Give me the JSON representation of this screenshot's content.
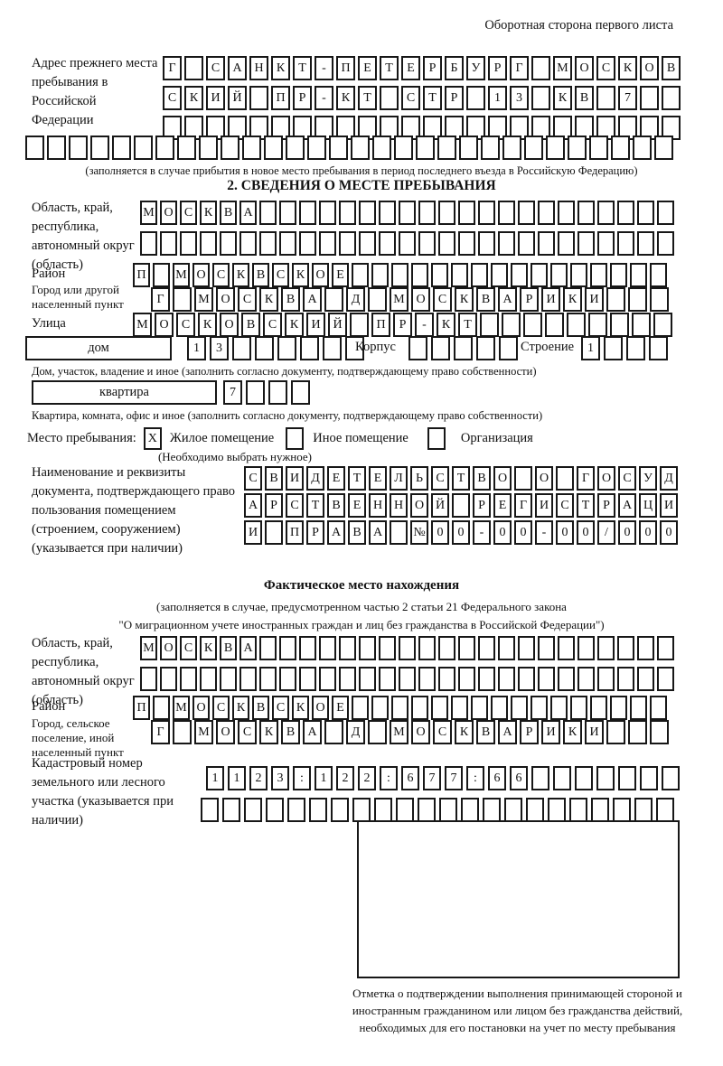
{
  "page": {
    "back_note": "Оборотная сторона первого листа"
  },
  "prev_address": {
    "label": "Адрес прежнего места пребывания в Российской Федерации",
    "rows": [
      [
        "Г",
        "",
        "С",
        "А",
        "Н",
        "К",
        "Т",
        "-",
        "П",
        "Е",
        "Т",
        "Е",
        "Р",
        "Б",
        "У",
        "Р",
        "Г",
        "",
        "М",
        "О",
        "С",
        "К",
        "О",
        "В"
      ],
      [
        "С",
        "К",
        "И",
        "Й",
        "",
        "П",
        "Р",
        "-",
        "К",
        "Т",
        "",
        "С",
        "Т",
        "Р",
        "",
        "1",
        "3",
        "",
        "К",
        "В",
        "",
        "7",
        "",
        ""
      ],
      [
        "",
        "",
        "",
        "",
        "",
        "",
        "",
        "",
        "",
        "",
        "",
        "",
        "",
        "",
        "",
        "",
        "",
        "",
        "",
        "",
        "",
        "",
        "",
        ""
      ],
      [
        "",
        "",
        "",
        "",
        "",
        "",
        "",
        "",
        "",
        "",
        "",
        "",
        "",
        "",
        "",
        "",
        "",
        "",
        "",
        "",
        "",
        "",
        "",
        "",
        "",
        "",
        "",
        "",
        "",
        ""
      ]
    ],
    "caption": "(заполняется в случае прибытия в новое место пребывания в период последнего въезда в Российскую Федерацию)"
  },
  "section2": {
    "title": "2. СВЕДЕНИЯ О МЕСТЕ ПРЕБЫВАНИЯ",
    "oblast": {
      "label": "Область, край, республика, автономный округ (область)",
      "rows": [
        [
          "М",
          "О",
          "С",
          "К",
          "В",
          "А",
          "",
          "",
          "",
          "",
          "",
          "",
          "",
          "",
          "",
          "",
          "",
          "",
          "",
          "",
          "",
          "",
          "",
          "",
          "",
          "",
          ""
        ],
        [
          "",
          "",
          "",
          "",
          "",
          "",
          "",
          "",
          "",
          "",
          "",
          "",
          "",
          "",
          "",
          "",
          "",
          "",
          "",
          "",
          "",
          "",
          "",
          "",
          "",
          "",
          ""
        ]
      ]
    },
    "raion": {
      "label": "Район",
      "row": [
        "П",
        "",
        "М",
        "О",
        "С",
        "К",
        "В",
        "С",
        "К",
        "О",
        "Е",
        "",
        "",
        "",
        "",
        "",
        "",
        "",
        "",
        "",
        "",
        "",
        "",
        "",
        "",
        "",
        ""
      ]
    },
    "gorod": {
      "label": "Город или другой населенный пункт",
      "row": [
        "Г",
        "",
        "М",
        "О",
        "С",
        "К",
        "В",
        "А",
        "",
        "Д",
        "",
        "М",
        "О",
        "С",
        "К",
        "В",
        "А",
        "Р",
        "И",
        "К",
        "И",
        "",
        "",
        ""
      ]
    },
    "ulitsa": {
      "label": "Улица",
      "row": [
        "М",
        "О",
        "С",
        "К",
        "О",
        "В",
        "С",
        "К",
        "И",
        "Й",
        "",
        "П",
        "Р",
        "-",
        "К",
        "Т",
        "",
        "",
        "",
        "",
        "",
        "",
        "",
        "",
        ""
      ]
    },
    "dom": {
      "box_label": "дом",
      "cells": [
        "1",
        "3",
        "",
        "",
        "",
        "",
        "",
        ""
      ],
      "korpus_label": "Корпус",
      "korpus_cells": [
        "",
        "",
        "",
        "",
        ""
      ],
      "stroenie_label": "Строение",
      "stroenie_cells": [
        "1",
        "",
        "",
        ""
      ],
      "caption": "Дом, участок, владение и иное (заполнить согласно документу, подтверждающему право собственности)"
    },
    "kvartira": {
      "box_label": "квартира",
      "cells": [
        "7",
        "",
        "",
        ""
      ],
      "caption": "Квартира, комната, офис и иное (заполнить согласно документу, подтверждающему право собственности)"
    },
    "mesto": {
      "label": "Место пребывания:",
      "options": [
        {
          "label": "Жилое помещение",
          "mark": "X"
        },
        {
          "label": "Иное помещение",
          "mark": ""
        },
        {
          "label": "Организация",
          "mark": ""
        }
      ],
      "note": "(Необходимо выбрать нужное)"
    },
    "doc": {
      "label": "Наименование и реквизиты документа, подтверждающего право пользования помещением (строением, сооружением) (указывается при наличии)",
      "rows": [
        [
          "С",
          "В",
          "И",
          "Д",
          "Е",
          "Т",
          "Е",
          "Л",
          "Ь",
          "С",
          "Т",
          "В",
          "О",
          "",
          "О",
          "",
          "Г",
          "О",
          "С",
          "У",
          "Д"
        ],
        [
          "А",
          "Р",
          "С",
          "Т",
          "В",
          "Е",
          "Н",
          "Н",
          "О",
          "Й",
          "",
          "Р",
          "Е",
          "Г",
          "И",
          "С",
          "Т",
          "Р",
          "А",
          "Ц",
          "И"
        ],
        [
          "И",
          "",
          "П",
          "Р",
          "А",
          "В",
          "А",
          "",
          "№",
          "0",
          "0",
          "-",
          "0",
          "0",
          "-",
          "0",
          "0",
          "/",
          "0",
          "0",
          "0"
        ]
      ]
    }
  },
  "fact": {
    "title": "Фактическое место нахождения",
    "caption1": "(заполняется в случае, предусмотренном частью 2 статьи 21 Федерального закона",
    "caption2": "\"О миграционном учете иностранных граждан и лиц без гражданства в Российской Федерации\")",
    "oblast": {
      "label": "Область, край, республика, автономный округ (область)",
      "rows": [
        [
          "М",
          "О",
          "С",
          "К",
          "В",
          "А",
          "",
          "",
          "",
          "",
          "",
          "",
          "",
          "",
          "",
          "",
          "",
          "",
          "",
          "",
          "",
          "",
          "",
          "",
          "",
          "",
          ""
        ],
        [
          "",
          "",
          "",
          "",
          "",
          "",
          "",
          "",
          "",
          "",
          "",
          "",
          "",
          "",
          "",
          "",
          "",
          "",
          "",
          "",
          "",
          "",
          "",
          "",
          "",
          "",
          ""
        ]
      ]
    },
    "raion": {
      "label": "Район",
      "row": [
        "П",
        "",
        "М",
        "О",
        "С",
        "К",
        "В",
        "С",
        "К",
        "О",
        "Е",
        "",
        "",
        "",
        "",
        "",
        "",
        "",
        "",
        "",
        "",
        "",
        "",
        "",
        "",
        "",
        ""
      ]
    },
    "gorod": {
      "label": "Город, сельское поселение, иной населенный пункт",
      "row": [
        "Г",
        "",
        "М",
        "О",
        "С",
        "К",
        "В",
        "А",
        "",
        "Д",
        "",
        "М",
        "О",
        "С",
        "К",
        "В",
        "А",
        "Р",
        "И",
        "К",
        "И",
        "",
        "",
        ""
      ]
    },
    "kadastr": {
      "label": "Кадастровый номер земельного или лесного участка (указывается при наличии)",
      "rows": [
        [
          "1",
          "1",
          "2",
          "3",
          ":",
          "1",
          "2",
          "2",
          ":",
          "6",
          "7",
          "7",
          ":",
          "6",
          "6",
          "",
          "",
          "",
          "",
          "",
          "",
          ""
        ],
        [
          "",
          "",
          "",
          "",
          "",
          "",
          "",
          "",
          "",
          "",
          "",
          "",
          "",
          "",
          "",
          "",
          "",
          "",
          "",
          "",
          "",
          ""
        ]
      ]
    },
    "stamp_caption": "Отметка о подтверждении выполнения принимающей стороной и иностранным гражданином или лицом без гражданства действий, необходимых для его постановки на учет по месту пребывания"
  }
}
